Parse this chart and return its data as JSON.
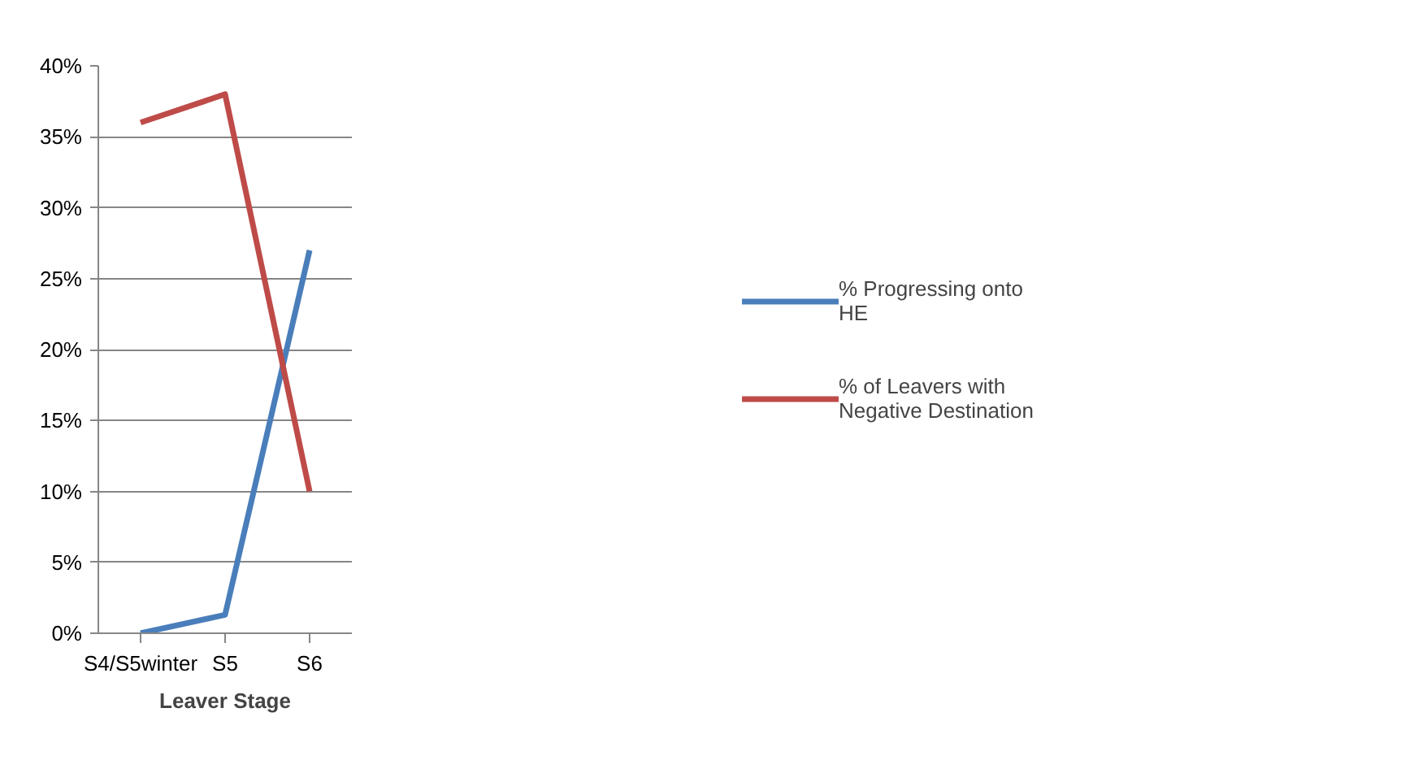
{
  "chart_data": {
    "type": "line",
    "xlabel": "Leaver Stage",
    "categories": [
      "S4/S5winter",
      "S5",
      "S6"
    ],
    "series": [
      {
        "name": "% Progressing onto HE",
        "color": "#4a7ebb",
        "values": [
          0,
          1.3,
          27
        ]
      },
      {
        "name": "% of Leavers with Negative Destination",
        "color": "#be4b48",
        "values": [
          36,
          38,
          10
        ]
      }
    ],
    "ylim": [
      0,
      40
    ],
    "yticks": [
      {
        "value": 0,
        "label": "0%"
      },
      {
        "value": 5,
        "label": "5%"
      },
      {
        "value": 10,
        "label": "10%"
      },
      {
        "value": 15,
        "label": "15%"
      },
      {
        "value": 20,
        "label": "20%"
      },
      {
        "value": 25,
        "label": "25%"
      },
      {
        "value": 30,
        "label": "30%"
      },
      {
        "value": 35,
        "label": "35%"
      },
      {
        "value": 40,
        "label": "40%"
      }
    ],
    "grid": "y",
    "legend": "right",
    "marker": "none",
    "line_style": "solid"
  }
}
